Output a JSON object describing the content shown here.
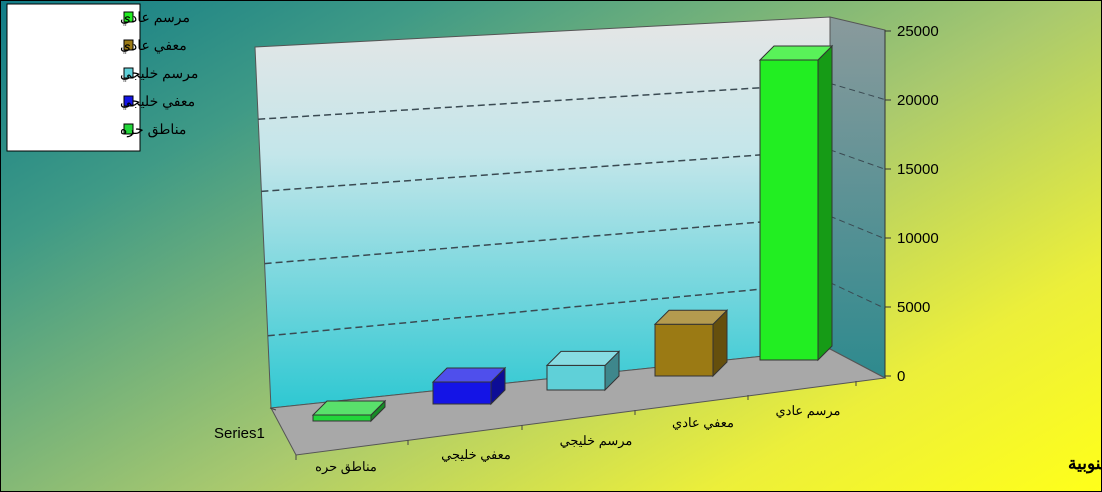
{
  "chart_data": {
    "type": "bar",
    "title": "الموانئ الجنوبية",
    "series_label": "Series1",
    "categories": [
      "مناطق حره",
      "معفي خليجي",
      "مرسم خليجي",
      "معفي عادي",
      "مرسم عادي"
    ],
    "values": [
      200,
      1700,
      1900,
      4000,
      23200
    ],
    "colors": [
      "#22d63a",
      "#1414e6",
      "#5fd0d8",
      "#9b7a14",
      "#22ee22"
    ],
    "ylim": [
      0,
      25000
    ],
    "yticks": [
      "0",
      "5000",
      "10000",
      "15000",
      "20000",
      "25000"
    ],
    "legend": {
      "placement": "top-left",
      "entries": [
        "مرسم عادي",
        "معفي عادي",
        "مرسم خليجي",
        "معفي خليجي",
        "مناطق حره"
      ],
      "colors": [
        "#22ee22",
        "#9b7a14",
        "#5fd0d8",
        "#1414e6",
        "#22d63a"
      ]
    },
    "grid": true
  }
}
